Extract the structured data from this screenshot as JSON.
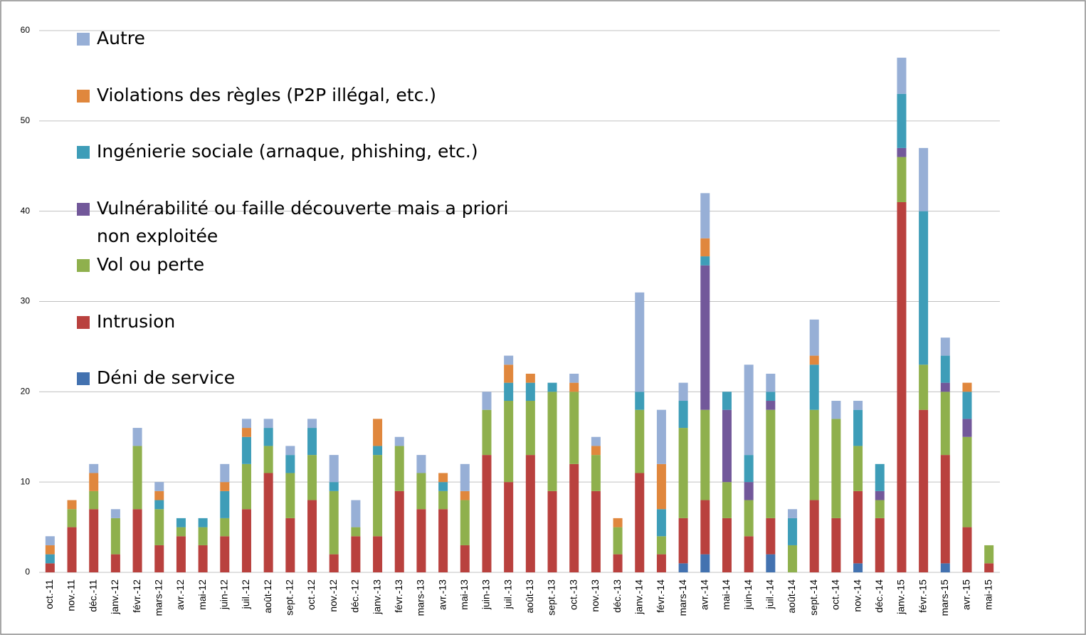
{
  "chart_data": {
    "type": "stacked-bar",
    "categories": [
      "oct.-11",
      "nov.-11",
      "déc.-11",
      "janv.-12",
      "févr.-12",
      "mars-12",
      "avr.-12",
      "mai-12",
      "juin-12",
      "juil.-12",
      "août-12",
      "sept.-12",
      "oct.-12",
      "nov.-12",
      "déc.-12",
      "janv.-13",
      "févr.-13",
      "mars-13",
      "avr.-13",
      "mai-13",
      "juin-13",
      "juil.-13",
      "août-13",
      "sept.-13",
      "oct.-13",
      "nov.-13",
      "déc.-13",
      "janv.-14",
      "févr.-14",
      "mars-14",
      "avr.-14",
      "mai-14",
      "juin-14",
      "juil.-14",
      "août-14",
      "sept.-14",
      "oct.-14",
      "nov.-14",
      "déc.-14",
      "janv.-15",
      "févr.-15",
      "mars-15",
      "avr.-15",
      "mai-15"
    ],
    "series": [
      {
        "name": "Déni de service",
        "color": "#4372b0",
        "values": [
          0,
          0,
          0,
          0,
          0,
          0,
          0,
          0,
          0,
          0,
          0,
          0,
          0,
          0,
          0,
          0,
          0,
          0,
          0,
          0,
          0,
          0,
          0,
          0,
          0,
          0,
          0,
          0,
          0,
          1,
          2,
          0,
          0,
          2,
          0,
          0,
          0,
          1,
          0,
          0,
          0,
          1,
          0,
          0
        ]
      },
      {
        "name": "Intrusion",
        "color": "#b9413e",
        "values": [
          1,
          5,
          7,
          2,
          7,
          3,
          4,
          3,
          4,
          7,
          11,
          6,
          8,
          2,
          4,
          4,
          9,
          7,
          7,
          3,
          13,
          10,
          13,
          9,
          12,
          9,
          2,
          11,
          2,
          5,
          6,
          6,
          4,
          4,
          0,
          8,
          6,
          8,
          6,
          41,
          18,
          12,
          5,
          1
        ]
      },
      {
        "name": "Vol ou perte",
        "color": "#8fb04d",
        "values": [
          0,
          2,
          2,
          4,
          7,
          4,
          1,
          2,
          2,
          5,
          3,
          5,
          5,
          7,
          1,
          9,
          5,
          4,
          2,
          5,
          5,
          9,
          6,
          11,
          8,
          4,
          3,
          7,
          2,
          10,
          10,
          4,
          4,
          12,
          3,
          10,
          11,
          5,
          2,
          5,
          5,
          7,
          10,
          2
        ]
      },
      {
        "name": "Vulnérabilité ou faille découverte mais a priori non exploitée",
        "color": "#72589a",
        "values": [
          0,
          0,
          0,
          0,
          0,
          0,
          0,
          0,
          0,
          0,
          0,
          0,
          0,
          0,
          0,
          0,
          0,
          0,
          0,
          0,
          0,
          0,
          0,
          0,
          0,
          0,
          0,
          0,
          0,
          0,
          16,
          8,
          2,
          1,
          0,
          0,
          0,
          0,
          1,
          1,
          0,
          1,
          2,
          0
        ]
      },
      {
        "name": "Ingénierie sociale (arnaque, phishing, etc.)",
        "color": "#3e9db8",
        "values": [
          1,
          0,
          0,
          0,
          0,
          1,
          1,
          1,
          3,
          3,
          2,
          2,
          3,
          1,
          0,
          1,
          0,
          0,
          1,
          0,
          0,
          2,
          2,
          1,
          0,
          0,
          0,
          2,
          3,
          3,
          1,
          2,
          3,
          1,
          3,
          5,
          0,
          4,
          3,
          6,
          17,
          3,
          3,
          0
        ]
      },
      {
        "name": "Violations des règles (P2P illégal, etc.)",
        "color": "#e0873d",
        "values": [
          1,
          1,
          2,
          0,
          0,
          1,
          0,
          0,
          1,
          1,
          0,
          0,
          0,
          0,
          0,
          3,
          0,
          0,
          1,
          1,
          0,
          2,
          1,
          0,
          1,
          1,
          1,
          0,
          5,
          0,
          2,
          0,
          0,
          0,
          0,
          1,
          0,
          0,
          0,
          0,
          0,
          0,
          1,
          0
        ]
      },
      {
        "name": "Autre",
        "color": "#97afd6",
        "values": [
          1,
          0,
          1,
          1,
          2,
          1,
          0,
          0,
          2,
          1,
          1,
          1,
          1,
          3,
          3,
          0,
          1,
          2,
          0,
          3,
          2,
          1,
          0,
          0,
          1,
          1,
          0,
          11,
          6,
          2,
          5,
          0,
          10,
          2,
          1,
          4,
          2,
          1,
          0,
          4,
          7,
          2,
          0,
          0
        ]
      }
    ],
    "ylim": [
      0,
      60
    ],
    "yticks": [
      0,
      10,
      20,
      30,
      40,
      50,
      60
    ],
    "grid": true
  }
}
